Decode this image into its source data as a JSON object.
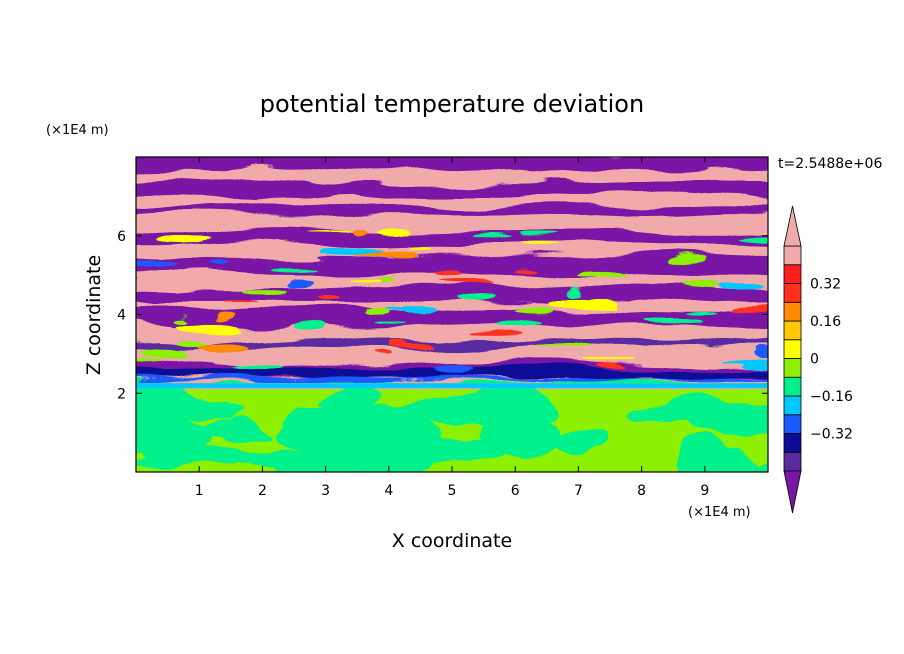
{
  "chart_data": {
    "type": "heatmap",
    "title": "potential temperature deviation",
    "xlabel": "X coordinate",
    "ylabel": "Z coordinate",
    "x_unit": "(×1E4 m)",
    "y_unit": "(×1E4 m)",
    "time_label": "t=2.5488e+06",
    "xlim": [
      0,
      10
    ],
    "ylim": [
      0,
      8
    ],
    "x_ticks": [
      "1",
      "2",
      "3",
      "4",
      "5",
      "6",
      "7",
      "8",
      "9"
    ],
    "y_ticks": [
      "2",
      "4",
      "6"
    ],
    "colorbar": {
      "levels": [
        -0.48,
        -0.4,
        -0.32,
        -0.24,
        -0.16,
        -0.08,
        0,
        0.08,
        0.16,
        0.24,
        0.32,
        0.4,
        0.48
      ],
      "tick_labels": [
        "0.32",
        "0.16",
        "0",
        "−0.16",
        "−0.32"
      ],
      "tick_values": [
        0.32,
        0.16,
        0,
        -0.16,
        -0.32
      ],
      "colors": [
        "#7a16a6",
        "#5a2aa0",
        "#0c0c96",
        "#1a5aff",
        "#00c8ff",
        "#00f08c",
        "#8cf000",
        "#ffff00",
        "#ffc800",
        "#ff8c00",
        "#ff3020",
        "#ff1e1e",
        "#f0aaaa"
      ],
      "extend": "both"
    },
    "structure_description_values": {
      "lower_layer_top_z": 2.1,
      "upper_banded_layer_range_z": [
        2.3,
        8
      ]
    }
  }
}
